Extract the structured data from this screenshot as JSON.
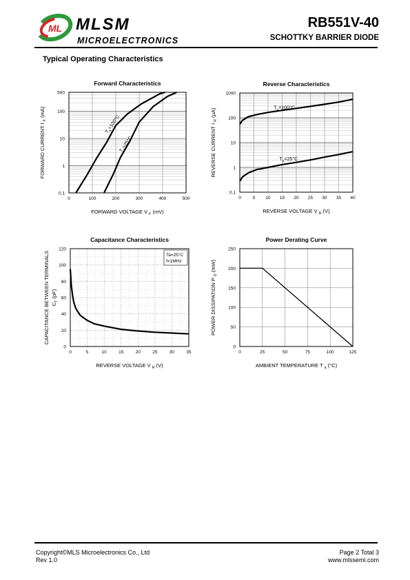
{
  "header": {
    "brand": "MLSM",
    "brand_sub": "MICROELECTRONICS",
    "logo_letters": "ML",
    "part_number": "RB551V-40",
    "description": "SCHOTTKY BARRIER DIODE"
  },
  "section_title": "Typical Operating Characteristics",
  "footer": {
    "copyright": "Copyright©MLS Microelectronics Co., Ltd",
    "revision": "Rev 1.0",
    "page": "Page 2 Total 3",
    "website": "www.mlssemi.com"
  },
  "colors": {
    "logo_green": "#2e9a3c",
    "logo_red": "#d7262a",
    "ink": "#000000",
    "grid": "#888888"
  },
  "chart_data": [
    {
      "id": "forward",
      "type": "line",
      "title": "Forward Characteristics",
      "xlabel": "FORWARD   VOLTAGE   V",
      "xlabel_sub": "F",
      "xlabel_unit": "(mV)",
      "ylabel": "FORWARD CURRENT    I",
      "ylabel_sub": "F",
      "ylabel_unit": "(mA)",
      "xlim": [
        0,
        500
      ],
      "ylim": [
        0.1,
        500
      ],
      "yscale": "log",
      "xticks": [
        0,
        100,
        200,
        300,
        400,
        500
      ],
      "yticks": [
        0.1,
        1,
        10,
        100,
        500
      ],
      "ytick_labels": [
        "0.1",
        "1",
        "10",
        "100",
        "500"
      ],
      "series": [
        {
          "name": "Ta=100°C",
          "points": [
            [
              30,
              0.1
            ],
            [
              80,
              0.5
            ],
            [
              120,
              2
            ],
            [
              160,
              7
            ],
            [
              200,
              30
            ],
            [
              250,
              80
            ],
            [
              310,
              190
            ],
            [
              390,
              450
            ],
            [
              410,
              500
            ]
          ]
        },
        {
          "name": "Ta=25°C",
          "points": [
            [
              150,
              0.1
            ],
            [
              190,
              0.5
            ],
            [
              220,
              2
            ],
            [
              260,
              8
            ],
            [
              300,
              40
            ],
            [
              360,
              150
            ],
            [
              420,
              350
            ],
            [
              460,
              500
            ]
          ]
        }
      ],
      "annotations": [
        {
          "text": "T",
          "sub": "a",
          "rest": "=100°C",
          "x": 165,
          "y": 15,
          "rotate": -55
        },
        {
          "text": "T",
          "sub": "a",
          "rest": "=25°C",
          "x": 225,
          "y": 3,
          "rotate": -55
        }
      ]
    },
    {
      "id": "reverse",
      "type": "line",
      "title": "Reverse Characteristics",
      "xlabel": "REVERSE VOLTAGE  V",
      "xlabel_sub": "R",
      "xlabel_unit": "(V)",
      "ylabel": "REVERSE CURRENT  I",
      "ylabel_sub": "R",
      "ylabel_unit": "(μA)",
      "xlim": [
        0,
        40
      ],
      "ylim": [
        0.1,
        1000
      ],
      "yscale": "log",
      "xticks": [
        0,
        5,
        10,
        15,
        20,
        25,
        30,
        35,
        40
      ],
      "yticks": [
        0.1,
        1,
        10,
        100,
        1000
      ],
      "ytick_labels": [
        "0.1",
        "1",
        "10",
        "100",
        "1000"
      ],
      "series": [
        {
          "name": "Ta=100°C",
          "points": [
            [
              0,
              55
            ],
            [
              1,
              80
            ],
            [
              3,
              110
            ],
            [
              6,
              135
            ],
            [
              10,
              165
            ],
            [
              15,
              200
            ],
            [
              20,
              240
            ],
            [
              25,
              290
            ],
            [
              30,
              350
            ],
            [
              35,
              430
            ],
            [
              40,
              560
            ]
          ]
        },
        {
          "name": "Ta=25°C",
          "points": [
            [
              0,
              0.28
            ],
            [
              1,
              0.42
            ],
            [
              3,
              0.6
            ],
            [
              6,
              0.82
            ],
            [
              10,
              1.0
            ],
            [
              15,
              1.3
            ],
            [
              20,
              1.6
            ],
            [
              25,
              2.0
            ],
            [
              30,
              2.6
            ],
            [
              35,
              3.3
            ],
            [
              40,
              4.3
            ]
          ]
        }
      ],
      "annotations": [
        {
          "text": "T",
          "sub": "a",
          "rest": "=100°C",
          "x": 12,
          "y": 220,
          "rotate": 0
        },
        {
          "text": "T",
          "sub": "a",
          "rest": "=25°C",
          "x": 14,
          "y": 1.9,
          "rotate": 0
        }
      ]
    },
    {
      "id": "capacitance",
      "type": "line",
      "title": "Capacitance   Characteristics",
      "xlabel": "REVERSE   VOLTAGE   V",
      "xlabel_sub": "R",
      "xlabel_unit": "(V)",
      "ylabel": "CAPACITANCE   BETWEEN   TERMINALS",
      "ylabel2": "C",
      "ylabel2_sub": "T",
      "ylabel2_unit": "(pF)",
      "xlim": [
        0,
        35
      ],
      "ylim": [
        0,
        120
      ],
      "xticks": [
        0,
        5,
        10,
        15,
        20,
        25,
        30,
        35
      ],
      "yticks": [
        0,
        20,
        40,
        60,
        80,
        100,
        120
      ],
      "series": [
        {
          "name": "",
          "points": [
            [
              0,
              95
            ],
            [
              0.3,
              75
            ],
            [
              0.7,
              62
            ],
            [
              1,
              55
            ],
            [
              1.5,
              48
            ],
            [
              2,
              44
            ],
            [
              3,
              38
            ],
            [
              4,
              35
            ],
            [
              5,
              32
            ],
            [
              7,
              28
            ],
            [
              10,
              25
            ],
            [
              15,
              21
            ],
            [
              20,
              19
            ],
            [
              25,
              17.5
            ],
            [
              30,
              16.5
            ],
            [
              35,
              15.5
            ]
          ]
        }
      ],
      "legend_box": [
        "Ta=25°C",
        "f=1MHz"
      ]
    },
    {
      "id": "derating",
      "type": "line",
      "title": "Power   Derating   Curve",
      "xlabel": "AMBIENT   TEMPERATURE   T",
      "xlabel_sub": "a",
      "xlabel_unit": "(°C)",
      "ylabel": "POWER  DISSIPATION P",
      "ylabel_sub": "D",
      "ylabel_unit": "(mW)",
      "xlim": [
        0,
        125
      ],
      "ylim": [
        0,
        250
      ],
      "xticks": [
        0,
        25,
        50,
        75,
        100,
        125
      ],
      "yticks": [
        0,
        50,
        100,
        150,
        200,
        250
      ],
      "series": [
        {
          "name": "",
          "points": [
            [
              0,
              200
            ],
            [
              25,
              200
            ],
            [
              125,
              0
            ]
          ]
        }
      ]
    }
  ]
}
